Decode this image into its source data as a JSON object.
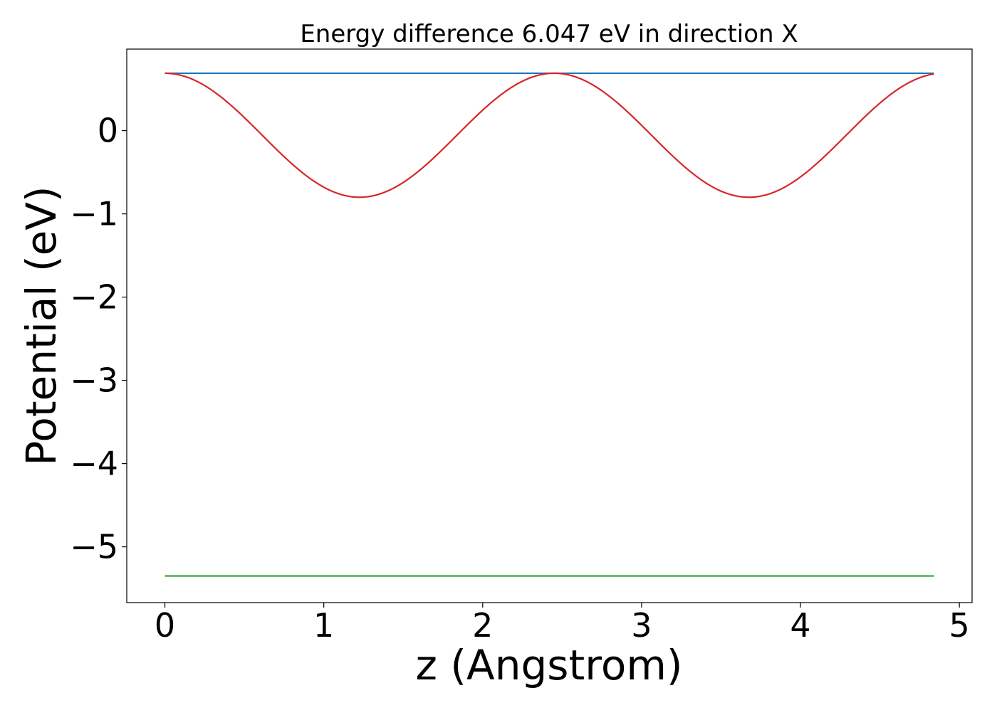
{
  "chart_data": {
    "type": "line",
    "title": "Energy difference 6.047 eV in direction X",
    "xlabel": "z (Angstrom)",
    "ylabel": "Potential (eV)",
    "xlim": [
      -0.24,
      5.08
    ],
    "ylim": [
      -5.67,
      0.98
    ],
    "x_ticks": [
      0,
      1,
      2,
      3,
      4,
      5
    ],
    "x_tick_labels": [
      "0",
      "1",
      "2",
      "3",
      "4",
      "5"
    ],
    "y_ticks": [
      0,
      -1,
      -2,
      -3,
      -4,
      -5
    ],
    "y_tick_labels": [
      "0",
      "−1",
      "−2",
      "−3",
      "−4",
      "−5"
    ],
    "grid": false,
    "legend": "none",
    "series": [
      {
        "color": "#1f77b4",
        "x": [
          0.0,
          4.84
        ],
        "y": [
          0.69,
          0.69
        ]
      },
      {
        "color": "#d62728",
        "curve": "cosine",
        "x_start": 0.0,
        "x_end": 4.84,
        "period": 2.45,
        "max": 0.69,
        "min": -0.8
      },
      {
        "color": "#2ca02c",
        "x": [
          0.0,
          4.84
        ],
        "y": [
          -5.35,
          -5.35
        ]
      }
    ]
  }
}
